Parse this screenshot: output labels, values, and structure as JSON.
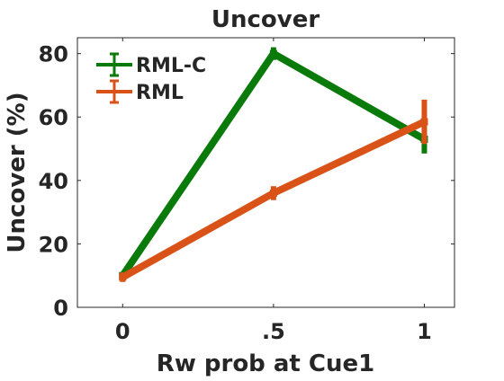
{
  "chart_data": {
    "type": "line",
    "title": "Uncover",
    "xlabel": "Rw prob at Cue1",
    "ylabel": "Uncover (%)",
    "x": [
      0,
      0.5,
      1
    ],
    "x_tick_labels": [
      "0",
      ".5",
      "1"
    ],
    "y_ticks": [
      0,
      20,
      40,
      60,
      80
    ],
    "xlim": [
      -0.15,
      1.1
    ],
    "ylim": [
      0,
      85
    ],
    "grid": false,
    "legend_position": "top-left",
    "series": [
      {
        "name": "RML-C",
        "color": "#0a7a0a",
        "values": [
          10,
          80,
          53
        ],
        "errors": [
          0.8,
          2,
          4.5
        ]
      },
      {
        "name": "RML",
        "color": "#d95319",
        "values": [
          9.5,
          36,
          58.5
        ],
        "errors": [
          1.5,
          2.2,
          7
        ]
      }
    ]
  }
}
